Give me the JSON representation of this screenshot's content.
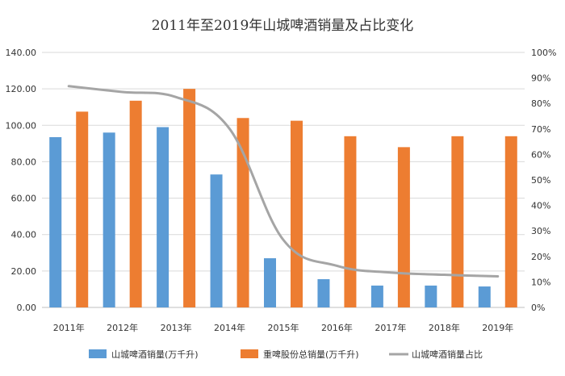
{
  "chart_data": {
    "type": "bar",
    "title": "2011年至2019年山城啤酒销量及占比变化",
    "categories": [
      "2011年",
      "2012年",
      "2013年",
      "2014年",
      "2015年",
      "2016年",
      "2017年",
      "2018年",
      "2019年"
    ],
    "series": [
      {
        "name": "山城啤酒销量(万千升)",
        "type": "bar",
        "axis": "left",
        "color": "#5B9BD5",
        "values": [
          93.5,
          96.0,
          99.0,
          73.0,
          27.0,
          15.5,
          12.0,
          12.0,
          11.5
        ]
      },
      {
        "name": "重啤股份总销量(万千升)",
        "type": "bar",
        "axis": "left",
        "color": "#ED7D31",
        "values": [
          107.5,
          113.5,
          120.0,
          104.0,
          102.5,
          94.0,
          88.0,
          94.0,
          94.0
        ]
      },
      {
        "name": "山城啤酒销量占比",
        "type": "line",
        "axis": "right",
        "color": "#A5A5A5",
        "values": [
          0.868,
          0.845,
          0.825,
          0.7,
          0.265,
          0.163,
          0.137,
          0.128,
          0.122
        ]
      }
    ],
    "y_left": {
      "ylim": [
        0,
        140
      ],
      "ticks": [
        "0.00",
        "20.00",
        "40.00",
        "60.00",
        "80.00",
        "100.00",
        "120.00",
        "140.00"
      ]
    },
    "y_right": {
      "ylim": [
        0,
        1
      ],
      "ticks": [
        "0%",
        "10%",
        "20%",
        "30%",
        "40%",
        "50%",
        "60%",
        "70%",
        "80%",
        "90%",
        "100%"
      ]
    },
    "legend": "bottom",
    "grid": true
  }
}
